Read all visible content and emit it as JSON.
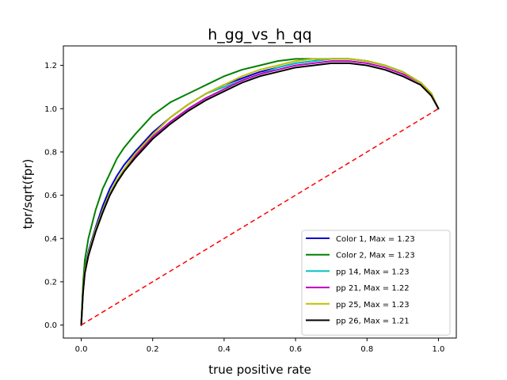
{
  "chart_data": {
    "type": "line",
    "title": "h_gg_vs_h_qq",
    "xlabel": "true positive rate",
    "ylabel": "tpr/sqrt(fpr)",
    "xlim": [
      -0.05,
      1.05
    ],
    "ylim": [
      -0.06,
      1.29
    ],
    "xticks": [
      "0.0",
      "0.2",
      "0.4",
      "0.6",
      "0.8",
      "1.0"
    ],
    "yticks": [
      "0.0",
      "0.2",
      "0.4",
      "0.6",
      "0.8",
      "1.0",
      "1.2"
    ],
    "legend_position": "lower-right",
    "grid": false,
    "series": [
      {
        "name": "Color 1, Max = 1.23",
        "color": "#0000cc",
        "x": [
          0.0,
          0.005,
          0.01,
          0.02,
          0.04,
          0.06,
          0.08,
          0.1,
          0.12,
          0.15,
          0.2,
          0.25,
          0.3,
          0.35,
          0.4,
          0.45,
          0.5,
          0.55,
          0.6,
          0.65,
          0.7,
          0.75,
          0.8,
          0.85,
          0.9,
          0.95,
          0.98,
          1.0
        ],
        "y": [
          0.0,
          0.17,
          0.26,
          0.34,
          0.45,
          0.55,
          0.63,
          0.69,
          0.74,
          0.8,
          0.89,
          0.96,
          1.02,
          1.07,
          1.11,
          1.14,
          1.17,
          1.19,
          1.21,
          1.22,
          1.23,
          1.23,
          1.22,
          1.2,
          1.17,
          1.12,
          1.07,
          1.0
        ]
      },
      {
        "name": "Color 2, Max = 1.23",
        "color": "#008000",
        "x": [
          0.0,
          0.005,
          0.01,
          0.02,
          0.04,
          0.06,
          0.08,
          0.1,
          0.12,
          0.15,
          0.2,
          0.25,
          0.3,
          0.35,
          0.4,
          0.45,
          0.5,
          0.55,
          0.6,
          0.65,
          0.7,
          0.75,
          0.8,
          0.85,
          0.9,
          0.95,
          0.98,
          1.0
        ],
        "y": [
          0.0,
          0.19,
          0.3,
          0.4,
          0.53,
          0.63,
          0.7,
          0.77,
          0.82,
          0.88,
          0.97,
          1.03,
          1.07,
          1.11,
          1.15,
          1.18,
          1.2,
          1.22,
          1.23,
          1.23,
          1.23,
          1.23,
          1.22,
          1.2,
          1.17,
          1.12,
          1.07,
          1.0
        ]
      },
      {
        "name": "pp 14, Max = 1.23",
        "color": "#00bfbf",
        "x": [
          0.0,
          0.005,
          0.01,
          0.02,
          0.04,
          0.06,
          0.08,
          0.1,
          0.12,
          0.15,
          0.2,
          0.25,
          0.3,
          0.35,
          0.4,
          0.45,
          0.5,
          0.55,
          0.6,
          0.65,
          0.7,
          0.75,
          0.8,
          0.85,
          0.9,
          0.95,
          0.98,
          1.0
        ],
        "y": [
          0.0,
          0.16,
          0.25,
          0.33,
          0.44,
          0.53,
          0.61,
          0.67,
          0.72,
          0.79,
          0.88,
          0.96,
          1.02,
          1.07,
          1.1,
          1.13,
          1.16,
          1.19,
          1.21,
          1.22,
          1.23,
          1.23,
          1.22,
          1.2,
          1.17,
          1.12,
          1.07,
          1.0
        ]
      },
      {
        "name": "pp 21, Max = 1.22",
        "color": "#bf00bf",
        "x": [
          0.0,
          0.005,
          0.01,
          0.02,
          0.04,
          0.06,
          0.08,
          0.1,
          0.12,
          0.15,
          0.2,
          0.25,
          0.3,
          0.35,
          0.4,
          0.45,
          0.5,
          0.55,
          0.6,
          0.65,
          0.7,
          0.75,
          0.8,
          0.85,
          0.9,
          0.95,
          0.98,
          1.0
        ],
        "y": [
          0.0,
          0.15,
          0.24,
          0.32,
          0.43,
          0.52,
          0.6,
          0.66,
          0.71,
          0.78,
          0.87,
          0.94,
          1.0,
          1.05,
          1.09,
          1.13,
          1.16,
          1.18,
          1.2,
          1.21,
          1.22,
          1.22,
          1.21,
          1.19,
          1.16,
          1.12,
          1.07,
          1.0
        ]
      },
      {
        "name": "pp 25, Max = 1.23",
        "color": "#bfbf00",
        "x": [
          0.0,
          0.005,
          0.01,
          0.02,
          0.04,
          0.06,
          0.08,
          0.1,
          0.12,
          0.15,
          0.2,
          0.25,
          0.3,
          0.35,
          0.4,
          0.45,
          0.5,
          0.55,
          0.6,
          0.65,
          0.7,
          0.75,
          0.8,
          0.85,
          0.9,
          0.95,
          0.98,
          1.0
        ],
        "y": [
          0.0,
          0.16,
          0.25,
          0.33,
          0.44,
          0.53,
          0.61,
          0.67,
          0.72,
          0.79,
          0.88,
          0.96,
          1.02,
          1.07,
          1.11,
          1.15,
          1.18,
          1.2,
          1.22,
          1.23,
          1.23,
          1.23,
          1.22,
          1.2,
          1.17,
          1.12,
          1.07,
          1.0
        ]
      },
      {
        "name": "pp 26, Max = 1.21",
        "color": "#000000",
        "x": [
          0.0,
          0.005,
          0.01,
          0.02,
          0.04,
          0.06,
          0.08,
          0.1,
          0.12,
          0.15,
          0.2,
          0.25,
          0.3,
          0.35,
          0.4,
          0.45,
          0.5,
          0.55,
          0.6,
          0.65,
          0.7,
          0.75,
          0.8,
          0.85,
          0.9,
          0.95,
          0.98,
          1.0
        ],
        "y": [
          0.0,
          0.15,
          0.24,
          0.32,
          0.43,
          0.52,
          0.6,
          0.66,
          0.71,
          0.77,
          0.86,
          0.93,
          0.99,
          1.04,
          1.08,
          1.12,
          1.15,
          1.17,
          1.19,
          1.2,
          1.21,
          1.21,
          1.2,
          1.18,
          1.15,
          1.11,
          1.06,
          1.0
        ]
      }
    ],
    "reference_line": {
      "x": [
        0.0,
        1.0
      ],
      "y": [
        0.0,
        1.0
      ],
      "color": "#ff0000",
      "style": "dashed"
    }
  }
}
